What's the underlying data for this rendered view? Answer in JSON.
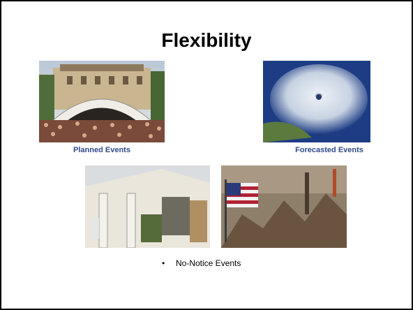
{
  "title": "Flexibility",
  "photos": [
    {
      "caption": "Planned Events"
    },
    {
      "caption": "Forecasted Events"
    }
  ],
  "bullets": [
    "No-Notice Events"
  ]
}
